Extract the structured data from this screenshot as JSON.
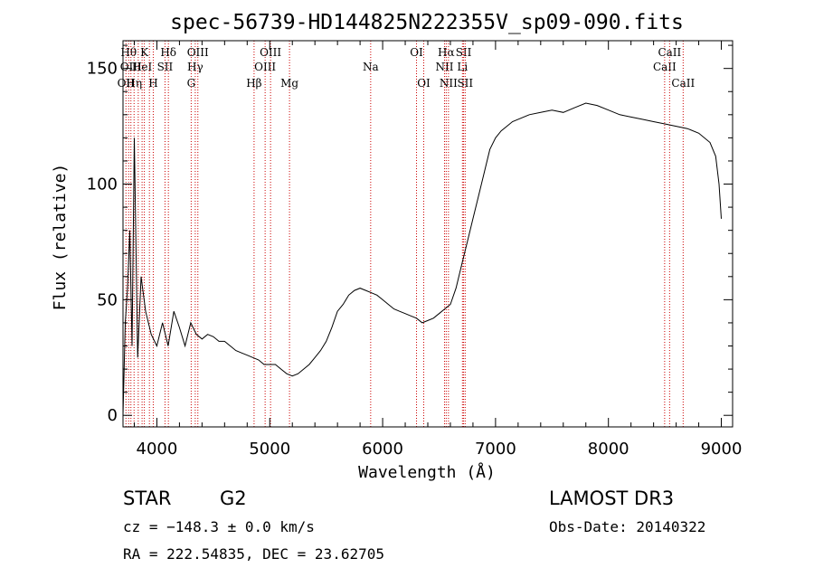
{
  "chart_data": {
    "type": "line",
    "title": "spec-56739-HD144825N222355V_sp09-090.fits",
    "xlabel": "Wavelength (Å)",
    "ylabel": "Flux (relative)",
    "xlim": [
      3700,
      9100
    ],
    "ylim": [
      -5,
      162
    ],
    "x_ticks": [
      4000,
      5000,
      6000,
      7000,
      8000,
      9000
    ],
    "y_ticks": [
      0,
      50,
      100,
      150
    ],
    "grid": false,
    "series": [
      {
        "color": "#000000",
        "x": [
          3700,
          3720,
          3740,
          3760,
          3780,
          3800,
          3830,
          3860,
          3900,
          3950,
          4000,
          4050,
          4100,
          4150,
          4200,
          4250,
          4300,
          4350,
          4400,
          4450,
          4500,
          4550,
          4600,
          4650,
          4700,
          4750,
          4800,
          4850,
          4900,
          4950,
          5000,
          5050,
          5100,
          5150,
          5200,
          5250,
          5300,
          5350,
          5400,
          5450,
          5500,
          5550,
          5600,
          5650,
          5700,
          5750,
          5800,
          5850,
          5900,
          5950,
          6000,
          6050,
          6100,
          6150,
          6200,
          6250,
          6300,
          6350,
          6400,
          6450,
          6500,
          6550,
          6600,
          6650,
          6700,
          6750,
          6800,
          6850,
          6900,
          6950,
          7000,
          7050,
          7100,
          7150,
          7200,
          7300,
          7400,
          7500,
          7600,
          7700,
          7800,
          7900,
          8000,
          8100,
          8200,
          8300,
          8400,
          8500,
          8600,
          8700,
          8800,
          8900,
          8950,
          8980,
          9000
        ],
        "y": [
          0,
          40,
          55,
          80,
          30,
          120,
          25,
          60,
          45,
          35,
          30,
          40,
          30,
          45,
          38,
          30,
          40,
          35,
          33,
          35,
          34,
          32,
          32,
          30,
          28,
          27,
          26,
          25,
          24,
          22,
          22,
          22,
          20,
          18,
          17,
          18,
          20,
          22,
          25,
          28,
          32,
          38,
          45,
          48,
          52,
          54,
          55,
          54,
          53,
          52,
          50,
          48,
          46,
          45,
          44,
          43,
          42,
          40,
          41,
          42,
          44,
          46,
          48,
          55,
          65,
          75,
          85,
          95,
          105,
          115,
          120,
          123,
          125,
          127,
          128,
          130,
          131,
          132,
          131,
          133,
          135,
          134,
          132,
          130,
          129,
          128,
          127,
          126,
          125,
          124,
          122,
          118,
          112,
          100,
          85
        ]
      }
    ],
    "lines": [
      {
        "x": 3726,
        "label": "OII",
        "row": 3
      },
      {
        "x": 3750,
        "label": "Hθ",
        "row": 1
      },
      {
        "x": 3770,
        "label": "OIII",
        "row": 2
      },
      {
        "x": 3798,
        "label": "Hη",
        "row": 3
      },
      {
        "x": 3835,
        "label": "",
        "row": 0
      },
      {
        "x": 3869,
        "label": "HeI",
        "row": 2
      },
      {
        "x": 3889,
        "label": "K",
        "row": 1
      },
      {
        "x": 3934,
        "label": "",
        "row": 0
      },
      {
        "x": 3968,
        "label": "H",
        "row": 3
      },
      {
        "x": 4072,
        "label": "SII",
        "row": 2
      },
      {
        "x": 4102,
        "label": "Hδ",
        "row": 1
      },
      {
        "x": 4304,
        "label": "G",
        "row": 3
      },
      {
        "x": 4340,
        "label": "Hγ",
        "row": 2
      },
      {
        "x": 4363,
        "label": "OIII",
        "row": 1
      },
      {
        "x": 4861,
        "label": "Hβ",
        "row": 3
      },
      {
        "x": 4959,
        "label": "OIII",
        "row": 2
      },
      {
        "x": 5007,
        "label": "OIII",
        "row": 1
      },
      {
        "x": 5175,
        "label": "Mg",
        "row": 3
      },
      {
        "x": 5894,
        "label": "Na",
        "row": 2
      },
      {
        "x": 6300,
        "label": "OI",
        "row": 1
      },
      {
        "x": 6364,
        "label": "OI",
        "row": 3
      },
      {
        "x": 6548,
        "label": "NII",
        "row": 2
      },
      {
        "x": 6563,
        "label": "Hα",
        "row": 1
      },
      {
        "x": 6583,
        "label": "NII",
        "row": 3
      },
      {
        "x": 6707,
        "label": "Li",
        "row": 2
      },
      {
        "x": 6717,
        "label": "SII",
        "row": 1
      },
      {
        "x": 6731,
        "label": "SII",
        "row": 3
      },
      {
        "x": 8498,
        "label": "CaII",
        "row": 2
      },
      {
        "x": 8542,
        "label": "CaII",
        "row": 1
      },
      {
        "x": 8662,
        "label": "CaII",
        "row": 3
      }
    ]
  },
  "info": {
    "object_class": "STAR",
    "subclass": "G2",
    "survey": "LAMOST DR3",
    "cz": "cz = −148.3 ± 0.0 km/s",
    "obs_date": "Obs-Date: 20140322",
    "coords": "RA = 222.54835, DEC =  23.62705"
  }
}
